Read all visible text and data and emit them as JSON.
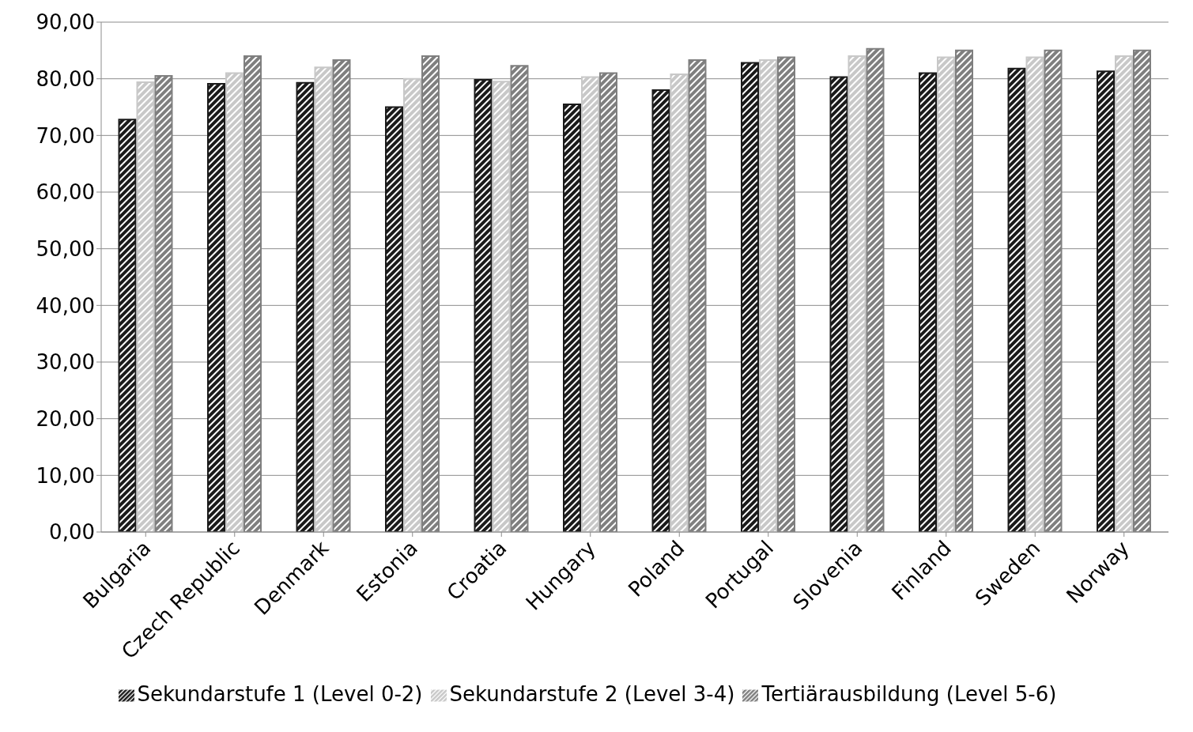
{
  "chart_data": {
    "type": "bar",
    "categories": [
      "Bulgaria",
      "Czech Republic",
      "Denmark",
      "Estonia",
      "Croatia",
      "Hungary",
      "Poland",
      "Portugal",
      "Slovenia",
      "Finland",
      "Sweden",
      "Norway"
    ],
    "series": [
      {
        "name": "Sekundarstufe 1 (Level 0-2)",
        "color": "#1a1a1a",
        "values": [
          72.8,
          79.1,
          79.3,
          75.0,
          79.8,
          75.5,
          78.0,
          82.8,
          80.3,
          81.0,
          81.8,
          81.3
        ]
      },
      {
        "name": "Sekundarstufe 2 (Level 3-4)",
        "color": "#c8c8c8",
        "values": [
          79.4,
          81.0,
          82.0,
          80.0,
          79.5,
          80.3,
          80.8,
          83.3,
          84.0,
          83.8,
          83.8,
          84.0
        ]
      },
      {
        "name": "Tertiärausbildung (Level 5-6)",
        "color": "#7f7f7f",
        "values": [
          80.5,
          84.0,
          83.3,
          84.0,
          82.3,
          81.0,
          83.3,
          83.8,
          85.3,
          85.0,
          85.0,
          85.0
        ]
      }
    ],
    "ylim": [
      0,
      90
    ],
    "yticks": [
      {
        "value": 0,
        "label": "0,00"
      },
      {
        "value": 10,
        "label": "10,00"
      },
      {
        "value": 20,
        "label": "20,00"
      },
      {
        "value": 30,
        "label": "30,00"
      },
      {
        "value": 40,
        "label": "40,00"
      },
      {
        "value": 50,
        "label": "50,00"
      },
      {
        "value": 60,
        "label": "60,00"
      },
      {
        "value": 70,
        "label": "70,00"
      },
      {
        "value": 80,
        "label": "80,00"
      },
      {
        "value": 90,
        "label": "90,00"
      }
    ],
    "grid": "y",
    "legend": "bottom"
  }
}
